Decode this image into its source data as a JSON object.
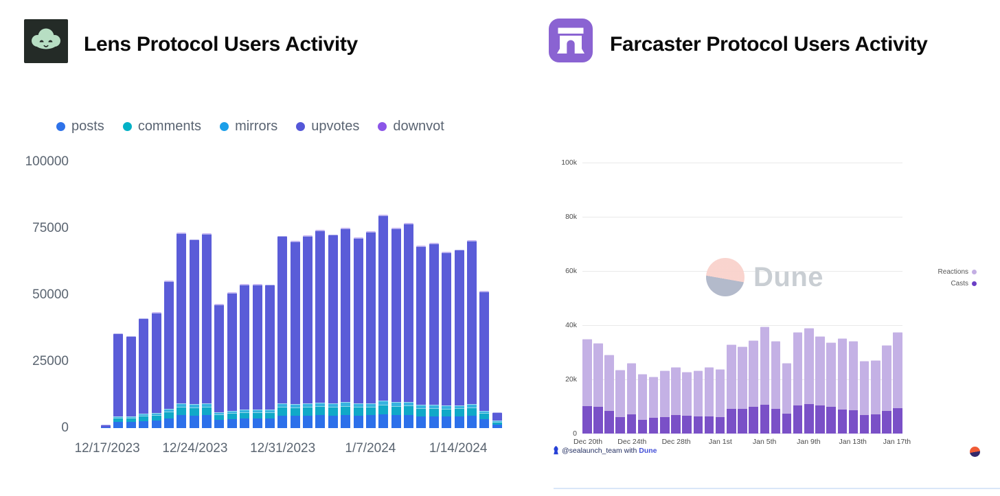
{
  "left_panel": {
    "title": "Lens Protocol Users Activity",
    "logo": {
      "bg": "#242b27",
      "cloud": "#b7dec3"
    },
    "legend": [
      {
        "label": "posts",
        "color": "#2e72e9"
      },
      {
        "label": "comments",
        "color": "#03b1c6"
      },
      {
        "label": "mirrors",
        "color": "#1c9fe9"
      },
      {
        "label": "upvotes",
        "color": "#5457d8"
      },
      {
        "label": "downvot",
        "color": "#8b55e8"
      }
    ]
  },
  "right_panel": {
    "title": "Farcaster Protocol Users Activity",
    "logo": {
      "bg": "#8a63d2",
      "glyph": "#ffffff"
    },
    "legend": [
      {
        "label": "Reactions",
        "color": "#c3aee3"
      },
      {
        "label": "Casts",
        "color": "#6b3fc5"
      }
    ],
    "watermark": {
      "text": "Dune"
    },
    "footer": {
      "handle": "@sealaunch_team",
      "middle": " with ",
      "brand": "Dune"
    }
  },
  "chart_data": [
    {
      "type": "bar",
      "stacked": true,
      "title": "Lens Protocol Users Activity",
      "xlabel": "",
      "ylabel": "",
      "ylim": [
        0,
        100000
      ],
      "grid": false,
      "legend_position": "top",
      "series_keys": [
        "posts",
        "comments",
        "mirrors",
        "upvotes",
        "downvotes"
      ],
      "colors": {
        "posts": "#2c70ea",
        "comments": "#10a9c8",
        "mirrors": "#37b3e0",
        "upvotes": "#5a5cd8",
        "downvotes": "#8b55e6"
      },
      "yticks": [
        {
          "label": "100000",
          "value": 100000
        },
        {
          "label": "75000",
          "value": 75000
        },
        {
          "label": "50000",
          "value": 50000
        },
        {
          "label": "25000",
          "value": 25000
        },
        {
          "label": "0",
          "value": 0
        }
      ],
      "xticks": [
        {
          "index": 0,
          "label": "12/17/2023"
        },
        {
          "index": 7,
          "label": "12/24/2023"
        },
        {
          "index": 14,
          "label": "12/31/2023"
        },
        {
          "index": 21,
          "label": "1/7/2024"
        },
        {
          "index": 28,
          "label": "1/14/2024"
        }
      ],
      "bars": [
        {
          "date": "12/17/2023",
          "posts": 200,
          "comments": 100,
          "mirrors": 0,
          "upvotes": 900,
          "downvotes": 0,
          "total": 1200
        },
        {
          "date": "12/18/2023",
          "posts": 2300,
          "comments": 1600,
          "mirrors": 600,
          "upvotes": 31000,
          "downvotes": 100,
          "total": 35600
        },
        {
          "date": "12/19/2023",
          "posts": 2200,
          "comments": 1600,
          "mirrors": 600,
          "upvotes": 30100,
          "downvotes": 100,
          "total": 34600
        },
        {
          "date": "12/20/2023",
          "posts": 2700,
          "comments": 1900,
          "mirrors": 700,
          "upvotes": 35900,
          "downvotes": 100,
          "total": 41300
        },
        {
          "date": "12/21/2023",
          "posts": 2800,
          "comments": 2000,
          "mirrors": 800,
          "upvotes": 37800,
          "downvotes": 100,
          "total": 43500
        },
        {
          "date": "12/22/2023",
          "posts": 3600,
          "comments": 2500,
          "mirrors": 1000,
          "upvotes": 48000,
          "downvotes": 200,
          "total": 55300
        },
        {
          "date": "12/23/2023",
          "posts": 4800,
          "comments": 3300,
          "mirrors": 1300,
          "upvotes": 63800,
          "downvotes": 200,
          "total": 73400
        },
        {
          "date": "12/24/2023",
          "posts": 4600,
          "comments": 3200,
          "mirrors": 1300,
          "upvotes": 61700,
          "downvotes": 200,
          "total": 71000
        },
        {
          "date": "12/25/2023",
          "posts": 4800,
          "comments": 3300,
          "mirrors": 1300,
          "upvotes": 63600,
          "downvotes": 200,
          "total": 73200
        },
        {
          "date": "12/26/2023",
          "posts": 3000,
          "comments": 2100,
          "mirrors": 800,
          "upvotes": 40600,
          "downvotes": 100,
          "total": 46600
        },
        {
          "date": "12/27/2023",
          "posts": 3300,
          "comments": 2300,
          "mirrors": 900,
          "upvotes": 44300,
          "downvotes": 200,
          "total": 51000
        },
        {
          "date": "12/28/2023",
          "posts": 3500,
          "comments": 2400,
          "mirrors": 1000,
          "upvotes": 47000,
          "downvotes": 200,
          "total": 54100
        },
        {
          "date": "12/29/2023",
          "posts": 3500,
          "comments": 2400,
          "mirrors": 1000,
          "upvotes": 47000,
          "downvotes": 200,
          "total": 54100
        },
        {
          "date": "12/30/2023",
          "posts": 3500,
          "comments": 2400,
          "mirrors": 1000,
          "upvotes": 46900,
          "downvotes": 200,
          "total": 54000
        },
        {
          "date": "12/31/2023",
          "posts": 4700,
          "comments": 3300,
          "mirrors": 1300,
          "upvotes": 62800,
          "downvotes": 200,
          "total": 72300
        },
        {
          "date": "1/1/2024",
          "posts": 4600,
          "comments": 3200,
          "mirrors": 1300,
          "upvotes": 61000,
          "downvotes": 200,
          "total": 70300
        },
        {
          "date": "1/2/2024",
          "posts": 4700,
          "comments": 3300,
          "mirrors": 1300,
          "upvotes": 62900,
          "downvotes": 200,
          "total": 72400
        },
        {
          "date": "1/3/2024",
          "posts": 4800,
          "comments": 3400,
          "mirrors": 1300,
          "upvotes": 64800,
          "downvotes": 200,
          "total": 74500
        },
        {
          "date": "1/4/2024",
          "posts": 4700,
          "comments": 3300,
          "mirrors": 1300,
          "upvotes": 63300,
          "downvotes": 200,
          "total": 72800
        },
        {
          "date": "1/5/2024",
          "posts": 4900,
          "comments": 3400,
          "mirrors": 1400,
          "upvotes": 65300,
          "downvotes": 200,
          "total": 75200
        },
        {
          "date": "1/6/2024",
          "posts": 4700,
          "comments": 3200,
          "mirrors": 1300,
          "upvotes": 62300,
          "downvotes": 200,
          "total": 71700
        },
        {
          "date": "1/7/2024",
          "posts": 4800,
          "comments": 3300,
          "mirrors": 1300,
          "upvotes": 64300,
          "downvotes": 200,
          "total": 73900
        },
        {
          "date": "1/8/2024",
          "posts": 5200,
          "comments": 3600,
          "mirrors": 1400,
          "upvotes": 69700,
          "downvotes": 200,
          "total": 80100
        },
        {
          "date": "1/9/2024",
          "posts": 4900,
          "comments": 3400,
          "mirrors": 1400,
          "upvotes": 65400,
          "downvotes": 200,
          "total": 75300
        },
        {
          "date": "1/10/2024",
          "posts": 5000,
          "comments": 3500,
          "mirrors": 1400,
          "upvotes": 66900,
          "downvotes": 200,
          "total": 77000
        },
        {
          "date": "1/11/2024",
          "posts": 4500,
          "comments": 3100,
          "mirrors": 1200,
          "upvotes": 59500,
          "downvotes": 200,
          "total": 68500
        },
        {
          "date": "1/12/2024",
          "posts": 4500,
          "comments": 3100,
          "mirrors": 1300,
          "upvotes": 60500,
          "downvotes": 200,
          "total": 69600
        },
        {
          "date": "1/13/2024",
          "posts": 4300,
          "comments": 3000,
          "mirrors": 1200,
          "upvotes": 57500,
          "downvotes": 200,
          "total": 66200
        },
        {
          "date": "1/14/2024",
          "posts": 4400,
          "comments": 3000,
          "mirrors": 1200,
          "upvotes": 58300,
          "downvotes": 200,
          "total": 67100
        },
        {
          "date": "1/15/2024",
          "posts": 4600,
          "comments": 3200,
          "mirrors": 1300,
          "upvotes": 61300,
          "downvotes": 200,
          "total": 70600
        },
        {
          "date": "1/16/2024",
          "posts": 3300,
          "comments": 2300,
          "mirrors": 900,
          "upvotes": 44800,
          "downvotes": 200,
          "total": 51500
        },
        {
          "date": "1/17/2024",
          "posts": 1400,
          "comments": 1000,
          "mirrors": 400,
          "upvotes": 3200,
          "downvotes": 0,
          "total": 6000
        }
      ]
    },
    {
      "type": "bar",
      "stacked": true,
      "title": "Farcaster Protocol Users Activity",
      "xlabel": "",
      "ylabel": "",
      "ylim": [
        0,
        100000
      ],
      "grid": true,
      "legend_position": "right",
      "series_keys": [
        "casts",
        "reactions"
      ],
      "colors": {
        "casts": "#7a50c7",
        "reactions": "#c4b1e5"
      },
      "yticks": [
        {
          "label": "100k",
          "value": 100000
        },
        {
          "label": "80k",
          "value": 80000
        },
        {
          "label": "60k",
          "value": 60000
        },
        {
          "label": "40k",
          "value": 40000
        },
        {
          "label": "20k",
          "value": 20000
        },
        {
          "label": "0",
          "value": 0
        }
      ],
      "xticks": [
        {
          "index": 0,
          "label": "Dec 20th"
        },
        {
          "index": 4,
          "label": "Dec 24th"
        },
        {
          "index": 8,
          "label": "Dec 28th"
        },
        {
          "index": 12,
          "label": "Jan 1st"
        },
        {
          "index": 16,
          "label": "Jan 5th"
        },
        {
          "index": 20,
          "label": "Jan 9th"
        },
        {
          "index": 24,
          "label": "Jan 13th"
        },
        {
          "index": 28,
          "label": "Jan 17th"
        }
      ],
      "bars": [
        {
          "date": "Dec 20",
          "casts": 10100,
          "reactions": 24900,
          "total": 35000
        },
        {
          "date": "Dec 21",
          "casts": 10000,
          "reactions": 23300,
          "total": 33300
        },
        {
          "date": "Dec 22",
          "casts": 8400,
          "reactions": 20600,
          "total": 29000
        },
        {
          "date": "Dec 23",
          "casts": 6200,
          "reactions": 17300,
          "total": 23500
        },
        {
          "date": "Dec 24",
          "casts": 7100,
          "reactions": 18900,
          "total": 26000
        },
        {
          "date": "Dec 25",
          "casts": 5000,
          "reactions": 17000,
          "total": 22000
        },
        {
          "date": "Dec 26",
          "casts": 5800,
          "reactions": 15200,
          "total": 21000
        },
        {
          "date": "Dec 27",
          "casts": 6100,
          "reactions": 17200,
          "total": 23300
        },
        {
          "date": "Dec 28",
          "casts": 6800,
          "reactions": 17700,
          "total": 24500
        },
        {
          "date": "Dec 29",
          "casts": 6600,
          "reactions": 16200,
          "total": 22800
        },
        {
          "date": "Dec 30",
          "casts": 6300,
          "reactions": 16900,
          "total": 23200
        },
        {
          "date": "Dec 31",
          "casts": 6300,
          "reactions": 18200,
          "total": 24500
        },
        {
          "date": "Jan 1",
          "casts": 6100,
          "reactions": 17800,
          "total": 23900
        },
        {
          "date": "Jan 2",
          "casts": 9100,
          "reactions": 23900,
          "total": 33000
        },
        {
          "date": "Jan 3",
          "casts": 9100,
          "reactions": 23000,
          "total": 32100
        },
        {
          "date": "Jan 4",
          "casts": 9800,
          "reactions": 24600,
          "total": 34400
        },
        {
          "date": "Jan 5",
          "casts": 10600,
          "reactions": 28900,
          "total": 39500
        },
        {
          "date": "Jan 6",
          "casts": 9200,
          "reactions": 25000,
          "total": 34200
        },
        {
          "date": "Jan 7",
          "casts": 7400,
          "reactions": 18600,
          "total": 26000
        },
        {
          "date": "Jan 8",
          "casts": 10500,
          "reactions": 26900,
          "total": 37400
        },
        {
          "date": "Jan 9",
          "casts": 10900,
          "reactions": 28000,
          "total": 38900
        },
        {
          "date": "Jan 10",
          "casts": 10500,
          "reactions": 25400,
          "total": 35900
        },
        {
          "date": "Jan 11",
          "casts": 10000,
          "reactions": 23700,
          "total": 33700
        },
        {
          "date": "Jan 12",
          "casts": 8900,
          "reactions": 26300,
          "total": 35200
        },
        {
          "date": "Jan 13",
          "casts": 8500,
          "reactions": 25600,
          "total": 34100
        },
        {
          "date": "Jan 14",
          "casts": 6800,
          "reactions": 20100,
          "total": 26900
        },
        {
          "date": "Jan 15",
          "casts": 7100,
          "reactions": 20100,
          "total": 27200
        },
        {
          "date": "Jan 16",
          "casts": 8300,
          "reactions": 24400,
          "total": 32700
        },
        {
          "date": "Jan 17",
          "casts": 9400,
          "reactions": 28100,
          "total": 37500
        }
      ]
    }
  ]
}
